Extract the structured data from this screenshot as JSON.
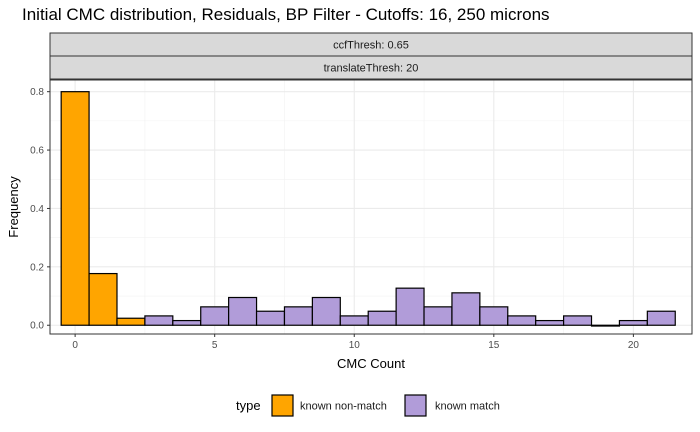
{
  "chart_data": {
    "type": "bar",
    "title": "Initial CMC distribution, Residuals, BP Filter - Cutoffs: 16, 250 microns",
    "facet_strips": [
      "ccfThresh: 0.65",
      "translateThresh: 20"
    ],
    "xlabel": "CMC Count",
    "ylabel": "Frequency",
    "xlim": [
      -0.9,
      22.1
    ],
    "ylim": [
      -0.03,
      0.84
    ],
    "x_ticks": [
      0,
      5,
      10,
      15,
      20
    ],
    "y_ticks": [
      0.0,
      0.2,
      0.4,
      0.6,
      0.8
    ],
    "y_tick_labels": [
      "0.0",
      "0.2",
      "0.4",
      "0.6",
      "0.8"
    ],
    "grid": true,
    "legend_position": "bottom",
    "legend_title": "type",
    "bin_width": 1,
    "series": [
      {
        "name": "known non-match",
        "color": "#FFA500",
        "x": [
          0,
          1,
          2
        ],
        "values": [
          0.8,
          0.177,
          0.024
        ]
      },
      {
        "name": "known match",
        "color": "#B19CD9",
        "x": [
          3,
          4,
          5,
          6,
          7,
          8,
          9,
          10,
          11,
          12,
          13,
          14,
          15,
          16,
          17,
          18,
          19,
          20,
          21
        ],
        "values": [
          0.032,
          0.016,
          0.063,
          0.095,
          0.048,
          0.063,
          0.095,
          0.032,
          0.048,
          0.127,
          0.063,
          0.111,
          0.063,
          0.032,
          0.016,
          0.032,
          0.0,
          0.016,
          0.048
        ]
      }
    ]
  }
}
